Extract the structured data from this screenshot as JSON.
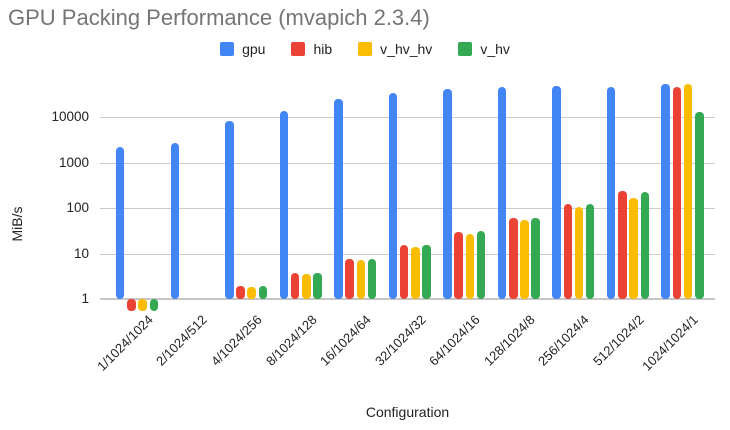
{
  "title": "GPU Packing Performance (mvapich 2.3.4)",
  "chart_data": {
    "type": "bar",
    "title": "GPU Packing Performance (mvapich 2.3.4)",
    "xlabel": "Configuration",
    "ylabel": "MiB/s",
    "y_scale": "log",
    "y_ticks": [
      1,
      10,
      100,
      1000,
      10000
    ],
    "ylim": [
      0.4,
      60000
    ],
    "grid": true,
    "legend_position": "top",
    "categories": [
      "1/1024/1024",
      "2/1024/512",
      "4/1024/256",
      "8/1024/128",
      "16/1024/64",
      "32/1024/32",
      "64/1024/16",
      "128/1024/8",
      "256/1024/4",
      "512/1024/2",
      "1024/1024/1"
    ],
    "series": [
      {
        "name": "gpu",
        "color": "#4285F4",
        "values": [
          2150,
          2700,
          8000,
          13500,
          25000,
          34000,
          42000,
          45000,
          47000,
          46000,
          52000
        ]
      },
      {
        "name": "hib",
        "color": "#EA4335",
        "values": [
          0.55,
          1,
          1.9,
          3.8,
          7.5,
          15,
          30,
          60,
          120,
          240,
          46000
        ]
      },
      {
        "name": "v_hv_hv",
        "color": "#FBBC04",
        "values": [
          0.55,
          1,
          1.8,
          3.6,
          7.2,
          14,
          27,
          55,
          105,
          170,
          52000
        ]
      },
      {
        "name": "v_hv",
        "color": "#34A853",
        "values": [
          0.55,
          1,
          1.9,
          3.8,
          7.6,
          15,
          31,
          60,
          120,
          230,
          13000
        ]
      }
    ]
  },
  "colors": {
    "title_text": "#757575",
    "axis_text": "#222222",
    "gridline": "#cccccc",
    "background": "#ffffff"
  }
}
